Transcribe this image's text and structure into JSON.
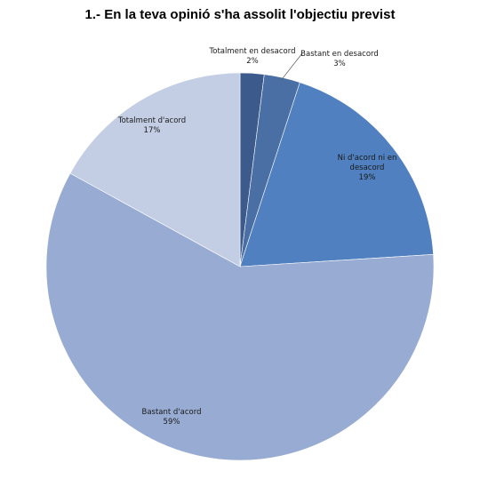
{
  "chart_data": {
    "type": "pie",
    "title": "1.- En la teva opinió s'ha assolit l'objectiu previst",
    "slices": [
      {
        "name": "Totalment en desacord",
        "value": 2,
        "label": "2%",
        "color": "#3d5a8c"
      },
      {
        "name": "Bastant en desacord",
        "value": 3,
        "label": "3%",
        "color": "#4a6fa5"
      },
      {
        "name": "Ni d'acord ni en desacord",
        "value": 19,
        "label": "19%",
        "color": "#5080bf"
      },
      {
        "name": "Bastant d'acord",
        "value": 59,
        "label": "59%",
        "color": "#98acd3"
      },
      {
        "name": "Totalment d'acord",
        "value": 17,
        "label": "17%",
        "color": "#c3cee4"
      }
    ]
  }
}
